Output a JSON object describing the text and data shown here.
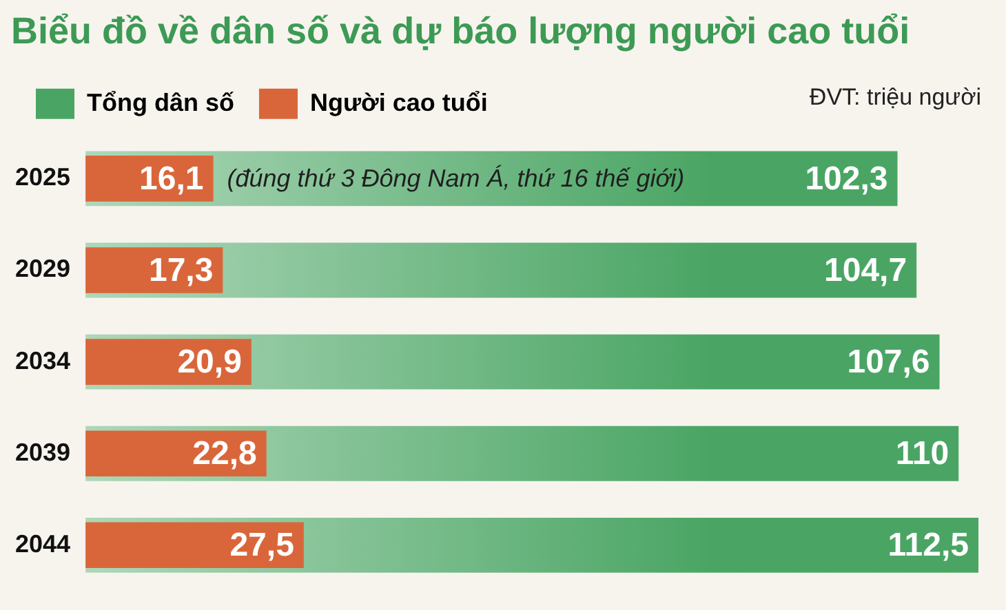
{
  "chart_data": {
    "type": "bar",
    "orientation": "horizontal",
    "title": "Biểu đồ về dân số và dự báo lượng người cao tuổi",
    "categories": [
      "2025",
      "2029",
      "2034",
      "2039",
      "2044"
    ],
    "series": [
      {
        "name": "Tổng dân số",
        "color": "#4aa564",
        "values": [
          102.3,
          104.7,
          107.6,
          110,
          112.5
        ],
        "value_labels": [
          "102,3",
          "104,7",
          "107,6",
          "110",
          "112,5"
        ]
      },
      {
        "name": "Người cao tuổi",
        "color": "#d9663a",
        "values": [
          16.1,
          17.3,
          20.9,
          22.8,
          27.5
        ],
        "value_labels": [
          "16,1",
          "17,3",
          "20,9",
          "22,8",
          "27,5"
        ]
      }
    ],
    "annotations": [
      "ĐVT: triệu người",
      {
        "text": "(đúng thứ 3 Đông Nam Á, thứ 16 thế giới)",
        "x": 16.1,
        "y": "2025"
      }
    ],
    "data_labels": true,
    "legend": "top left",
    "grid": false
  }
}
